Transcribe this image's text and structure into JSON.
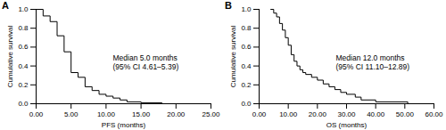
{
  "chart_data": [
    {
      "type": "step",
      "title": "A",
      "x_label": "PFS (months)",
      "y_label": "Cumulative survival",
      "color": "#000000",
      "x": [
        0,
        1,
        2,
        3,
        4,
        5,
        6,
        7,
        8,
        9,
        10,
        11,
        12,
        13,
        15,
        18
      ],
      "values": [
        1.0,
        0.93,
        0.87,
        0.72,
        0.55,
        0.33,
        0.28,
        0.18,
        0.14,
        0.1,
        0.08,
        0.06,
        0.04,
        0.02,
        0.01,
        0.0
      ],
      "xlim": [
        0,
        25
      ],
      "xticks": [
        {
          "value": 0,
          "label": "0.00"
        },
        {
          "value": 5,
          "label": "5.00"
        },
        {
          "value": 10,
          "label": "10.00"
        },
        {
          "value": 15,
          "label": "15.00"
        },
        {
          "value": 20,
          "label": "20.00"
        },
        {
          "value": 25,
          "label": "25.00"
        }
      ],
      "ylim": [
        0,
        1
      ],
      "yticks": [
        {
          "value": 0,
          "label": "0.0"
        },
        {
          "value": 0.2,
          "label": "0.2"
        },
        {
          "value": 0.4,
          "label": "0.4"
        },
        {
          "value": 0.6,
          "label": "0.6"
        },
        {
          "value": 0.8,
          "label": "0.8"
        },
        {
          "value": 1,
          "label": "1.0"
        }
      ],
      "annotation": [
        "Median 5.0 months",
        "(95% CI 4.61–5.39)"
      ]
    },
    {
      "type": "step",
      "title": "B",
      "x_label": "OS (months)",
      "y_label": "Cumulative survival",
      "color": "#000000",
      "x": [
        4,
        5,
        6,
        7,
        8,
        9,
        10,
        11,
        12,
        13,
        14,
        15,
        16,
        18,
        20,
        22,
        24,
        26,
        28,
        30,
        33,
        35,
        40,
        51
      ],
      "values": [
        1.0,
        0.96,
        0.92,
        0.85,
        0.78,
        0.7,
        0.62,
        0.52,
        0.45,
        0.4,
        0.36,
        0.33,
        0.31,
        0.28,
        0.25,
        0.21,
        0.18,
        0.15,
        0.12,
        0.1,
        0.07,
        0.04,
        0.02,
        0.0
      ],
      "xlim": [
        0,
        60
      ],
      "xticks": [
        {
          "value": 0,
          "label": "0.00"
        },
        {
          "value": 10,
          "label": "10.00"
        },
        {
          "value": 20,
          "label": "20.00"
        },
        {
          "value": 30,
          "label": "30.00"
        },
        {
          "value": 40,
          "label": "40.00"
        },
        {
          "value": 50,
          "label": "50.00"
        },
        {
          "value": 60,
          "label": "60.00"
        }
      ],
      "ylim": [
        0,
        1
      ],
      "yticks": [
        {
          "value": 0,
          "label": "0.0"
        },
        {
          "value": 0.2,
          "label": "0.2"
        },
        {
          "value": 0.4,
          "label": "0.4"
        },
        {
          "value": 0.6,
          "label": "0.6"
        },
        {
          "value": 0.8,
          "label": "0.8"
        },
        {
          "value": 1,
          "label": "1.0"
        }
      ],
      "annotation": [
        "Median 12.0 months",
        "(95% CI 11.10–12.89)"
      ]
    }
  ]
}
